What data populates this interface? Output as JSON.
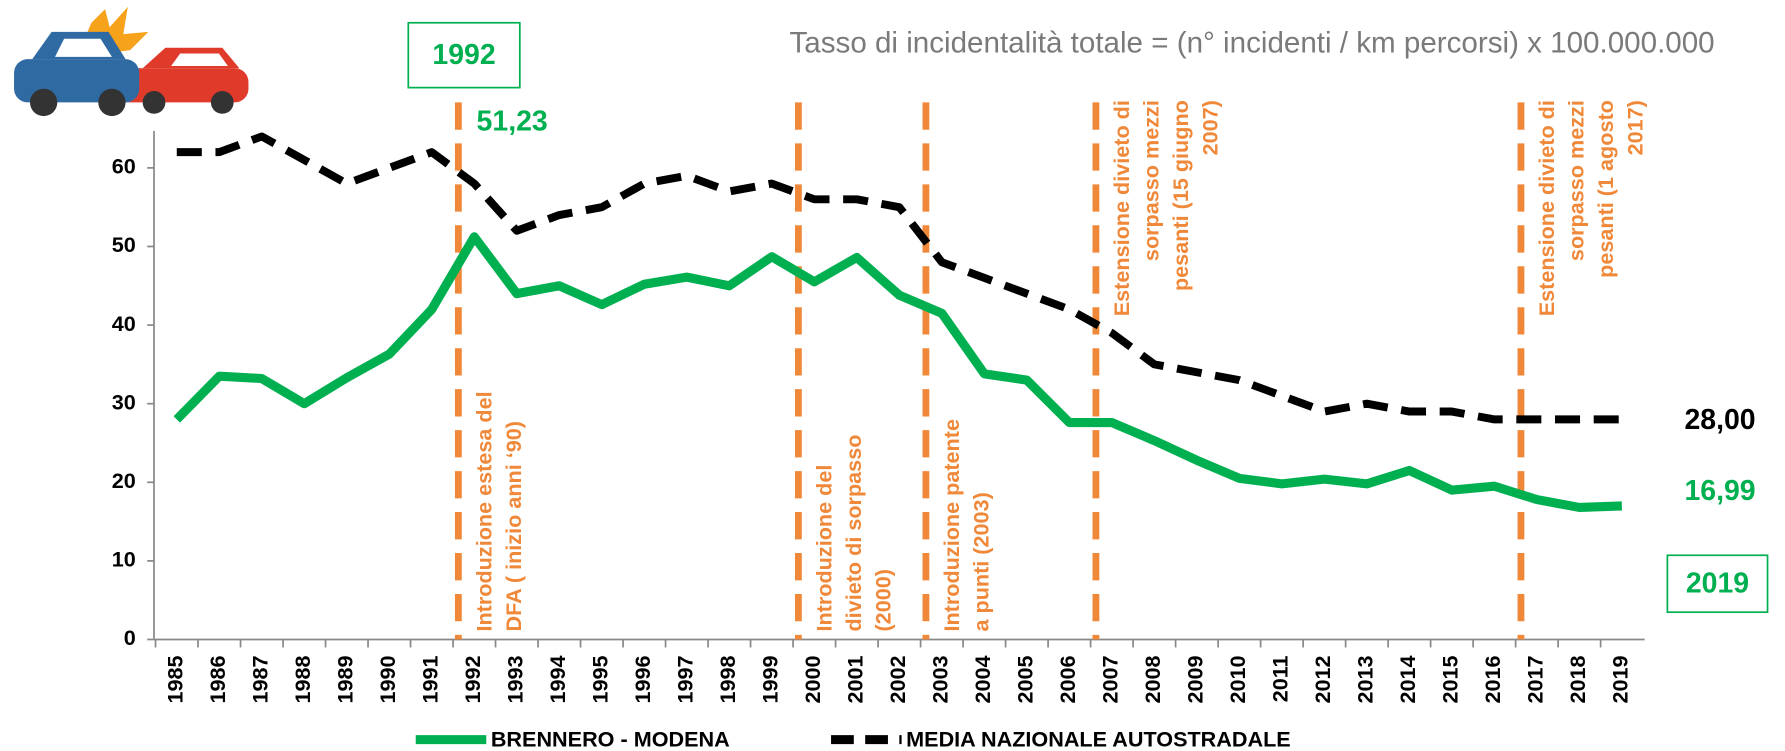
{
  "chart_data": {
    "type": "line",
    "title": "Tasso di incidentalità totale = (n° incidenti / km percorsi) x 100.000.000",
    "categories": [
      "1985",
      "1986",
      "1987",
      "1988",
      "1989",
      "1990",
      "1991",
      "1992",
      "1993",
      "1994",
      "1995",
      "1996",
      "1997",
      "1998",
      "1999",
      "2000",
      "2001",
      "2002",
      "2003",
      "2004",
      "2005",
      "2006",
      "2007",
      "2008",
      "2009",
      "2010",
      "2011",
      "2012",
      "2013",
      "2014",
      "2015",
      "2016",
      "2017",
      "2018",
      "2019"
    ],
    "series": [
      {
        "name": "BRENNERO - MODENA",
        "color": "#00b050",
        "dashed": false,
        "values": [
          28,
          33.5,
          33.2,
          30,
          33.3,
          36.3,
          42,
          51.23,
          44,
          45,
          42.6,
          45.2,
          46.1,
          45,
          48.7,
          45.5,
          48.6,
          43.8,
          41.5,
          33.8,
          33,
          27.6,
          27.6,
          25.3,
          22.8,
          20.5,
          19.8,
          20.4,
          19.8,
          21.5,
          19,
          19.5,
          17.8,
          16.8,
          16.99
        ],
        "value_labels": [
          null,
          null,
          null,
          null,
          null,
          null,
          null,
          "51,23",
          null,
          null,
          null,
          null,
          null,
          null,
          null,
          null,
          null,
          null,
          null,
          null,
          null,
          null,
          null,
          null,
          null,
          null,
          null,
          null,
          null,
          null,
          null,
          null,
          null,
          null,
          "16,99"
        ]
      },
      {
        "name": "MEDIA NAZIONALE AUTOSTRADALE",
        "color": "#000000",
        "dashed": true,
        "values": [
          62,
          62,
          64,
          61,
          58,
          60,
          62,
          58,
          52,
          54,
          55,
          58,
          59,
          57,
          58,
          56,
          56,
          55,
          48,
          46,
          44,
          42,
          39,
          35,
          34,
          33,
          31,
          29,
          30,
          29,
          29,
          28,
          28,
          28,
          28
        ],
        "value_labels": [
          null,
          null,
          null,
          null,
          null,
          null,
          null,
          null,
          null,
          null,
          null,
          null,
          null,
          null,
          null,
          null,
          null,
          null,
          null,
          null,
          null,
          null,
          null,
          null,
          null,
          null,
          null,
          null,
          null,
          null,
          null,
          null,
          null,
          null,
          "28,00"
        ]
      }
    ],
    "ylim": [
      0,
      65
    ],
    "yticks": [
      0,
      10,
      20,
      30,
      40,
      50,
      60
    ],
    "callouts": [
      "1992",
      "2019"
    ],
    "annotation_color": "#f0883a",
    "annotations": [
      {
        "at": "1992",
        "position": "bottom",
        "lines": [
          "Introduzione estesa del",
          "DFA ( inizio anni ‘90)"
        ]
      },
      {
        "at": "2000",
        "position": "bottom",
        "lines": [
          "Introduzione del",
          "divieto di sorpasso",
          "(2000)"
        ]
      },
      {
        "at": "2003",
        "position": "bottom",
        "lines": [
          "Introduzione patente",
          "a punti (2003)"
        ]
      },
      {
        "at": "2007",
        "position": "top",
        "lines": [
          "Estensione divieto di",
          "sorpasso mezzi",
          "pesanti (15 giugno",
          "2007)"
        ]
      },
      {
        "at": "2017",
        "position": "top",
        "lines": [
          "Estensione divieto di",
          "sorpasso mezzi",
          "pesanti (1 agosto",
          "2017)"
        ]
      }
    ]
  }
}
